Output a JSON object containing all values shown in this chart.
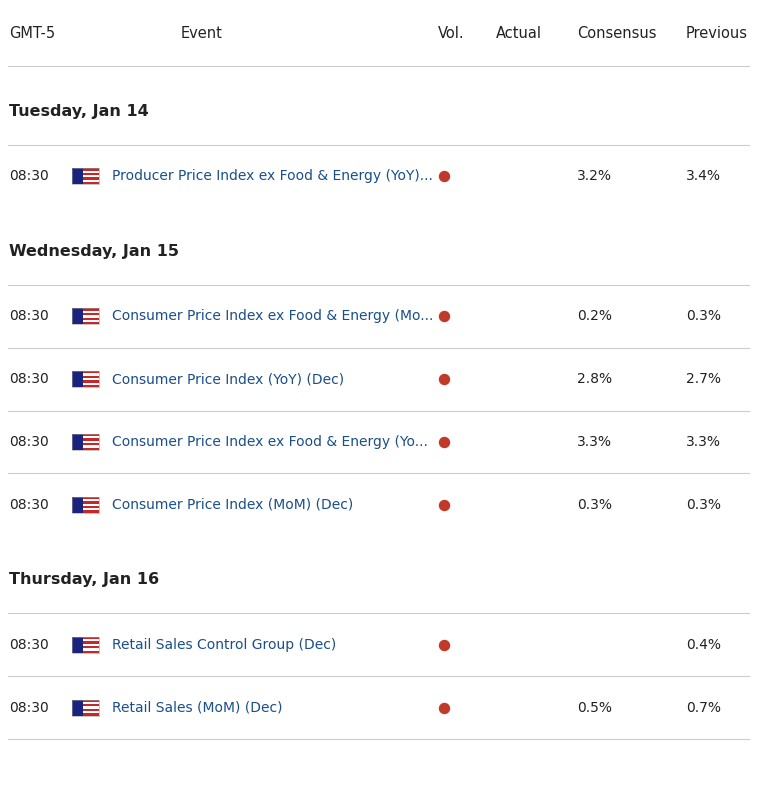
{
  "sections": [
    {
      "day": "Tuesday, Jan 14",
      "rows": [
        {
          "time": "08:30",
          "event": "Producer Price Index ex Food & Energy (YoY)...",
          "vol_dot": true,
          "consensus": "3.2%",
          "previous": "3.4%"
        }
      ]
    },
    {
      "day": "Wednesday, Jan 15",
      "rows": [
        {
          "time": "08:30",
          "event": "Consumer Price Index ex Food & Energy (Mo...",
          "vol_dot": true,
          "consensus": "0.2%",
          "previous": "0.3%"
        },
        {
          "time": "08:30",
          "event": "Consumer Price Index (YoY) (Dec)",
          "vol_dot": true,
          "consensus": "2.8%",
          "previous": "2.7%"
        },
        {
          "time": "08:30",
          "event": "Consumer Price Index ex Food & Energy (Yo...",
          "vol_dot": true,
          "consensus": "3.3%",
          "previous": "3.3%"
        },
        {
          "time": "08:30",
          "event": "Consumer Price Index (MoM) (Dec)",
          "vol_dot": true,
          "consensus": "0.3%",
          "previous": "0.3%"
        }
      ]
    },
    {
      "day": "Thursday, Jan 16",
      "rows": [
        {
          "time": "08:30",
          "event": "Retail Sales Control Group (Dec)",
          "vol_dot": true,
          "consensus": "",
          "previous": "0.4%"
        },
        {
          "time": "08:30",
          "event": "Retail Sales (MoM) (Dec)",
          "vol_dot": true,
          "consensus": "0.5%",
          "previous": "0.7%"
        }
      ]
    }
  ],
  "col_gmt": 0.012,
  "col_flag": 0.095,
  "col_event": 0.148,
  "col_vol_dot": 0.587,
  "col_actual": 0.655,
  "col_consensus": 0.762,
  "col_previous": 0.906,
  "bg_color": "#ffffff",
  "header_color": "#222222",
  "day_color": "#222222",
  "time_color": "#222222",
  "event_color": "#1a4f8a",
  "data_color": "#222222",
  "dot_color": "#c0392b",
  "line_color": "#cccccc",
  "header_font_size": 10.5,
  "day_font_size": 11.5,
  "row_font_size": 10,
  "flag_color_blue": "#1a237e",
  "flag_color_red": "#c62828"
}
